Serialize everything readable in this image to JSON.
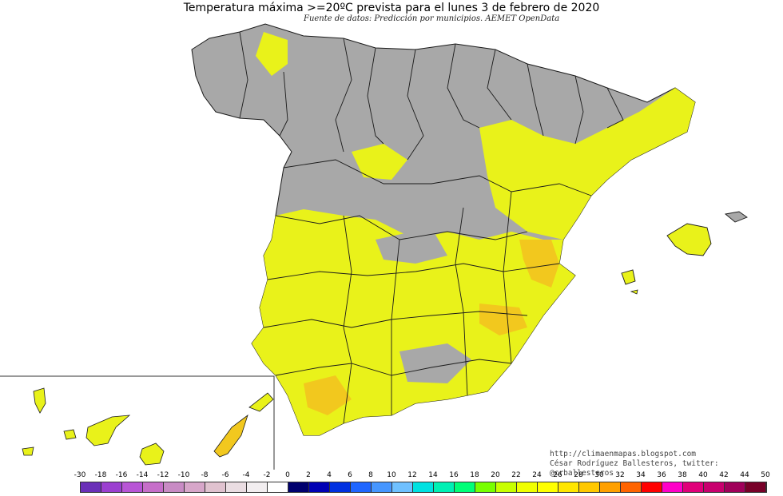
{
  "title": "Temperatura máxima >=20ºC prevista para el lunes 3 de febrero de 2020",
  "subtitle": "Fuente de datos: Predicción por municipios. AEMET OpenData",
  "credits": {
    "url": "http://climaenmapas.blogspot.com",
    "author": "César Rodríguez Ballesteros, twitter: @crballesteros"
  },
  "legend": {
    "labels": [
      "-30",
      "-18",
      "-16",
      "-14",
      "-12",
      "-10",
      "-8",
      "-6",
      "-4",
      "-2",
      "0",
      "2",
      "4",
      "6",
      "8",
      "10",
      "12",
      "14",
      "16",
      "18",
      "20",
      "22",
      "24",
      "26",
      "28",
      "30",
      "32",
      "34",
      "36",
      "38",
      "40",
      "42",
      "44",
      "50"
    ],
    "colors": [
      "#6a2fb8",
      "#9b3fd0",
      "#b855d6",
      "#c66ec9",
      "#c88bc4",
      "#d7a6c9",
      "#e0c2cf",
      "#eadde2",
      "#f2eef0",
      "#ffffff",
      "#00006e",
      "#0000b4",
      "#0030e0",
      "#1f66ff",
      "#4696ff",
      "#6fc0ff",
      "#00e1e1",
      "#00f0b4",
      "#00ff78",
      "#78ff00",
      "#c8ff00",
      "#f0ff00",
      "#ffff00",
      "#ffe600",
      "#ffc800",
      "#ffa000",
      "#ff6400",
      "#ff0000",
      "#ff00c8",
      "#e0007a",
      "#c8006e",
      "#a0005a",
      "#780028"
    ]
  },
  "colors": {
    "land_cold": "#a8a8a8",
    "land_warm": "#e9f21a",
    "land_hot": "#f2c81e",
    "border": "#1a1a1a"
  },
  "map": {
    "region": "Península Ibérica, Baleares y Canarias"
  }
}
